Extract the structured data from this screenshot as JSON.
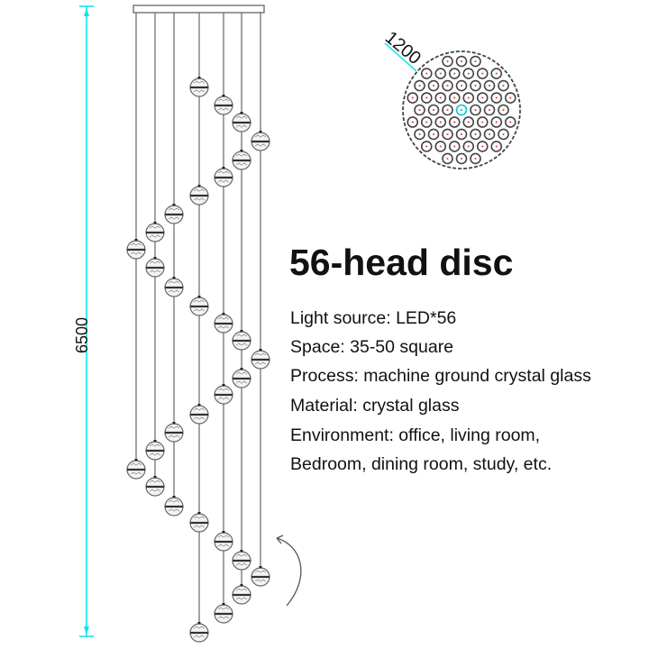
{
  "drawing": {
    "height_dimension": "6500",
    "diameter_dimension": "1200",
    "dimension_color": "#00e5ee",
    "line_color": "#555555",
    "light_dot_color": "#e05050"
  },
  "title": "56-head disc",
  "specs": [
    "Light source: LED*56",
    "Space: 35-50 square",
    "Process: machine ground crystal glass",
    "Material: crystal glass",
    "Environment: office, living room,",
    "Bedroom, dining room, study, etc."
  ]
}
